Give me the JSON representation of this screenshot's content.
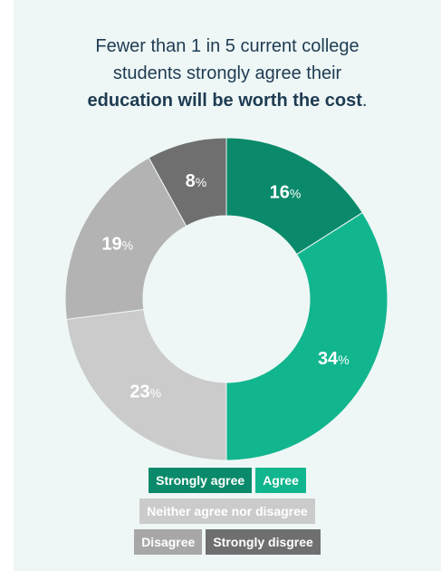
{
  "title": {
    "line1": "Fewer than 1 in 5 current college",
    "line2": "students strongly agree their",
    "line3_bold": "education will be worth the cost",
    "line3_end": "."
  },
  "chart_data": {
    "type": "pie",
    "donut": true,
    "unit": "%",
    "categories": [
      "Strongly agree",
      "Agree",
      "Neither agree nor disagree",
      "Disagree",
      "Strongly disgree"
    ],
    "values": [
      16,
      34,
      23,
      19,
      8
    ],
    "colors": [
      "#0a8a6a",
      "#12b68e",
      "#cbcbcb",
      "#b3b3b3",
      "#6f6f6f"
    ],
    "title": "",
    "legend_position": "bottom"
  },
  "legend": {
    "rows": [
      [
        {
          "label": "Strongly agree",
          "color": "#0a8a6a"
        },
        {
          "label": "Agree",
          "color": "#12b68e"
        }
      ],
      [
        {
          "label": "Neither agree nor disagree",
          "color": "#cbcbcb"
        }
      ],
      [
        {
          "label": "Disagree",
          "color": "#a7a7a7"
        },
        {
          "label": "Strongly disgree",
          "color": "#6f6f6f"
        }
      ]
    ]
  }
}
